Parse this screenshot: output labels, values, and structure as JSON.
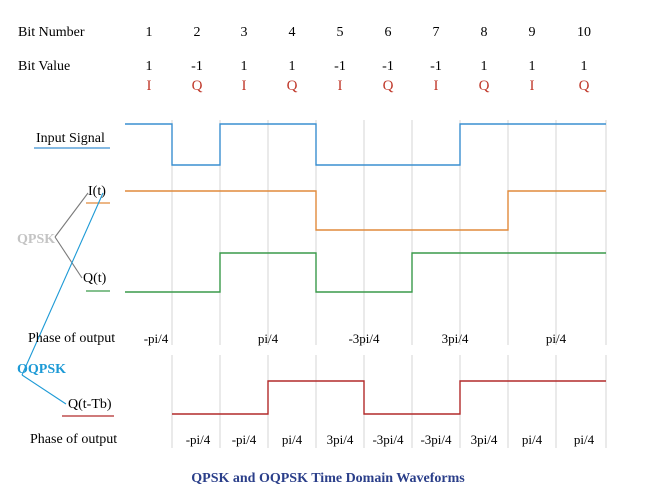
{
  "header": {
    "bit_number_label": "Bit Number",
    "bit_value_label": "Bit Value"
  },
  "bits": {
    "numbers": [
      "1",
      "2",
      "3",
      "4",
      "5",
      "6",
      "7",
      "8",
      "9",
      "10"
    ],
    "values": [
      "1",
      "-1",
      "1",
      "1",
      "-1",
      "-1",
      "-1",
      "1",
      "1",
      "1"
    ],
    "types": [
      "I",
      "Q",
      "I",
      "Q",
      "I",
      "Q",
      "I",
      "Q",
      "I",
      "Q"
    ]
  },
  "labels": {
    "input_signal": "Input Signal",
    "i_t": "I(t)",
    "q_t": "Q(t)",
    "qpsk": "QPSK",
    "oqpsk": "OQPSK",
    "q_delayed": "Q(t-Tb)",
    "phase_label_qpsk": "Phase of output",
    "phase_label_oqpsk": "Phase of output"
  },
  "qpsk_phases": [
    "-pi/4",
    "pi/4",
    "-3pi/4",
    "3pi/4",
    "pi/4"
  ],
  "oqpsk_phases": [
    "-pi/4",
    "-pi/4",
    "pi/4",
    "3pi/4",
    "-3pi/4",
    "-3pi/4",
    "3pi/4",
    "pi/4",
    "pi/4"
  ],
  "caption": "QPSK and OQPSK Time Domain Waveforms",
  "colors": {
    "input": "#3a8fd0",
    "i_signal": "#e08a3c",
    "q_signal": "#3a9a4a",
    "q_delayed": "#b22a2a",
    "grid": "#d6d6d6",
    "bit_type": "#c0392b",
    "qpsk_label": "#c4c4c4",
    "oqpsk_label": "#1d9ad6",
    "caption": "#2b3f8a"
  }
}
